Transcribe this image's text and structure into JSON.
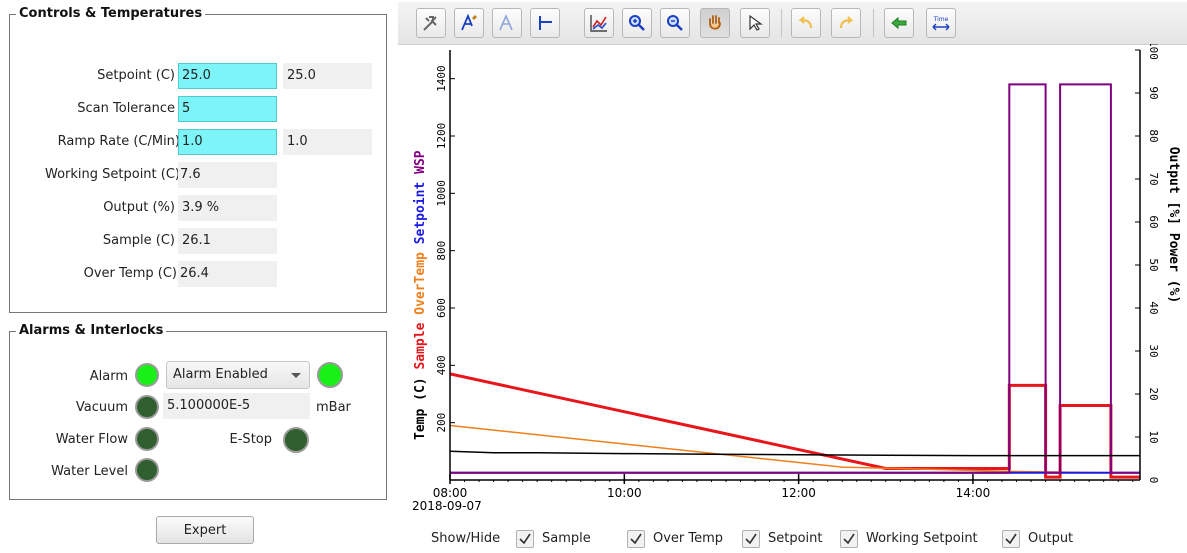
{
  "controls": {
    "title": "Controls & Temperatures",
    "setpoint": {
      "label": "Setpoint (C)",
      "value": "25.0",
      "readback": "25.0"
    },
    "scan_tolerance": {
      "label": "Scan Tolerance",
      "value": "5"
    },
    "ramp_rate": {
      "label": "Ramp Rate (C/Min)",
      "value": "1.0",
      "readback": "1.0"
    },
    "working_setpoint": {
      "label": "Working Setpoint (C)",
      "value": "7.6"
    },
    "output": {
      "label": "Output (%)",
      "value": "3.9 %"
    },
    "sample": {
      "label": "Sample (C)",
      "value": "26.1"
    },
    "over_temp": {
      "label": "Over Temp (C)",
      "value": "26.4"
    }
  },
  "alarms": {
    "title": "Alarms & Interlocks",
    "alarm": {
      "label": "Alarm",
      "mode": "Alarm Enabled",
      "led_color": "#18f018",
      "status_led_color": "#18f018"
    },
    "vacuum": {
      "label": "Vacuum",
      "value": "5.100000E-5",
      "unit": "mBar",
      "led_color": "#2f5f2f"
    },
    "water_flow": {
      "label": "Water Flow",
      "led_color": "#2f5f2f"
    },
    "estop": {
      "label": "E-Stop",
      "led_color": "#2f5f2f"
    },
    "water_level": {
      "label": "Water Level",
      "led_color": "#2f5f2f"
    }
  },
  "expert_button": "Expert",
  "toolbar": {
    "icons": [
      "settings-icon",
      "axes-style-icon",
      "axes-style-disabled-icon",
      "axis-tool-icon",
      "chart-config-icon",
      "zoom-in-icon",
      "zoom-out-icon",
      "pan-hand-icon",
      "pointer-icon",
      "undo-icon",
      "redo-icon",
      "back-icon",
      "time-scale-icon"
    ],
    "time_icon_text": "Time"
  },
  "chart_data": {
    "type": "line",
    "x_ticks": [
      "08:00",
      "10:00",
      "12:00",
      "14:00"
    ],
    "date_label": "2018-09-07",
    "xlim": [
      "08:00",
      "15:55"
    ],
    "left_axis": {
      "ticks": [
        200,
        400,
        600,
        800,
        1000,
        1200,
        1400
      ],
      "ylim": [
        0,
        1500
      ],
      "labels": [
        {
          "text": "Temp (C)",
          "color": "#000000"
        },
        {
          "text": "Sample",
          "color": "#e8151b"
        },
        {
          "text": "OverTemp",
          "color": "#f07f1a"
        },
        {
          "text": "Setpoint",
          "color": "#1a1ae0"
        },
        {
          "text": "WSP",
          "color": "#800080"
        }
      ]
    },
    "right_axis": {
      "ticks": [
        0,
        10,
        20,
        30,
        40,
        50,
        60,
        70,
        80,
        90,
        100
      ],
      "ylim": [
        0,
        100
      ],
      "label": "Output [%] Power (%)"
    },
    "grid": false,
    "series": [
      {
        "name": "Sample",
        "color": "#e8151b",
        "width": 3,
        "x": [
          "08:00",
          "13:00",
          "14:25",
          "14:25",
          "14:50",
          "14:50",
          "15:00",
          "15:00",
          "15:35",
          "15:35",
          "15:55"
        ],
        "y": [
          370,
          40,
          40,
          330,
          330,
          10,
          10,
          260,
          260,
          10,
          10
        ]
      },
      {
        "name": "Over Temp",
        "color": "#f07f1a",
        "width": 1.5,
        "x": [
          "08:00",
          "12:30",
          "14:25",
          "15:35",
          "15:55"
        ],
        "y": [
          190,
          45,
          30,
          25,
          25
        ]
      },
      {
        "name": "Setpoint",
        "color": "#1a1ae0",
        "width": 2,
        "x": [
          "08:00",
          "15:55"
        ],
        "y": [
          25,
          25
        ]
      },
      {
        "name": "Working Setpoint",
        "color": "#800080",
        "width": 2,
        "x": [
          "08:00",
          "14:25",
          "14:25",
          "14:50",
          "14:50",
          "15:00",
          "15:00",
          "15:35",
          "15:35",
          "15:55"
        ],
        "y": [
          25,
          25,
          1380,
          1380,
          25,
          25,
          1380,
          1380,
          25,
          25
        ]
      },
      {
        "name": "Output",
        "color": "#000000",
        "width": 1.5,
        "x": [
          "08:00",
          "08:30",
          "09:00",
          "10:00",
          "11:00",
          "12:00",
          "13:00",
          "14:00",
          "15:00",
          "15:55"
        ],
        "y": [
          100,
          95,
          95,
          92,
          90,
          88,
          86,
          85,
          85,
          85
        ]
      }
    ]
  },
  "show_hide": {
    "label": "Show/Hide",
    "items": [
      {
        "label": "Sample",
        "checked": true
      },
      {
        "label": "Over Temp",
        "checked": true
      },
      {
        "label": "Setpoint",
        "checked": true
      },
      {
        "label": "Working Setpoint",
        "checked": true
      },
      {
        "label": "Output",
        "checked": true
      }
    ]
  }
}
